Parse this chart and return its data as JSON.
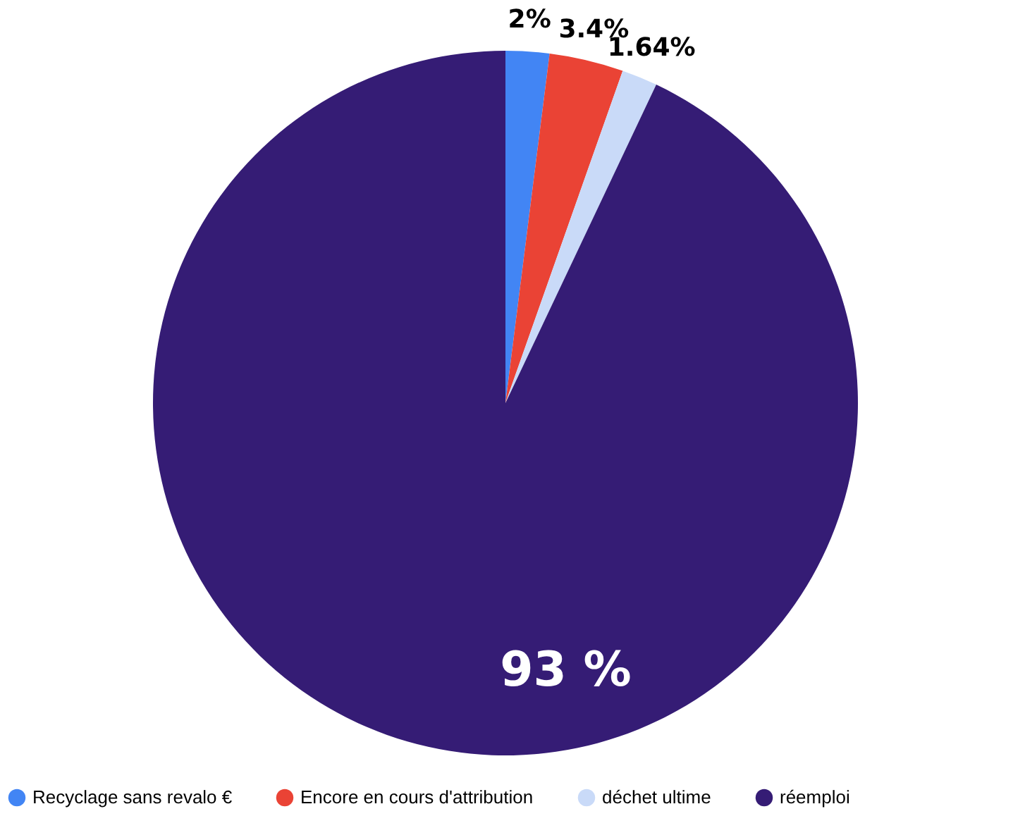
{
  "chart_data": {
    "type": "pie",
    "categories": [
      "Recyclage sans revalo €",
      "Encore en cours d'attribution",
      "déchet ultime",
      "réemploi"
    ],
    "values": [
      2,
      3.4,
      1.64,
      93
    ],
    "colors": [
      "#4285f4",
      "#ea4335",
      "#c9daf8",
      "#351c75"
    ],
    "value_labels": [
      "2%",
      "3.4%",
      "1.64%",
      "93 %"
    ],
    "legend": "bottom"
  }
}
